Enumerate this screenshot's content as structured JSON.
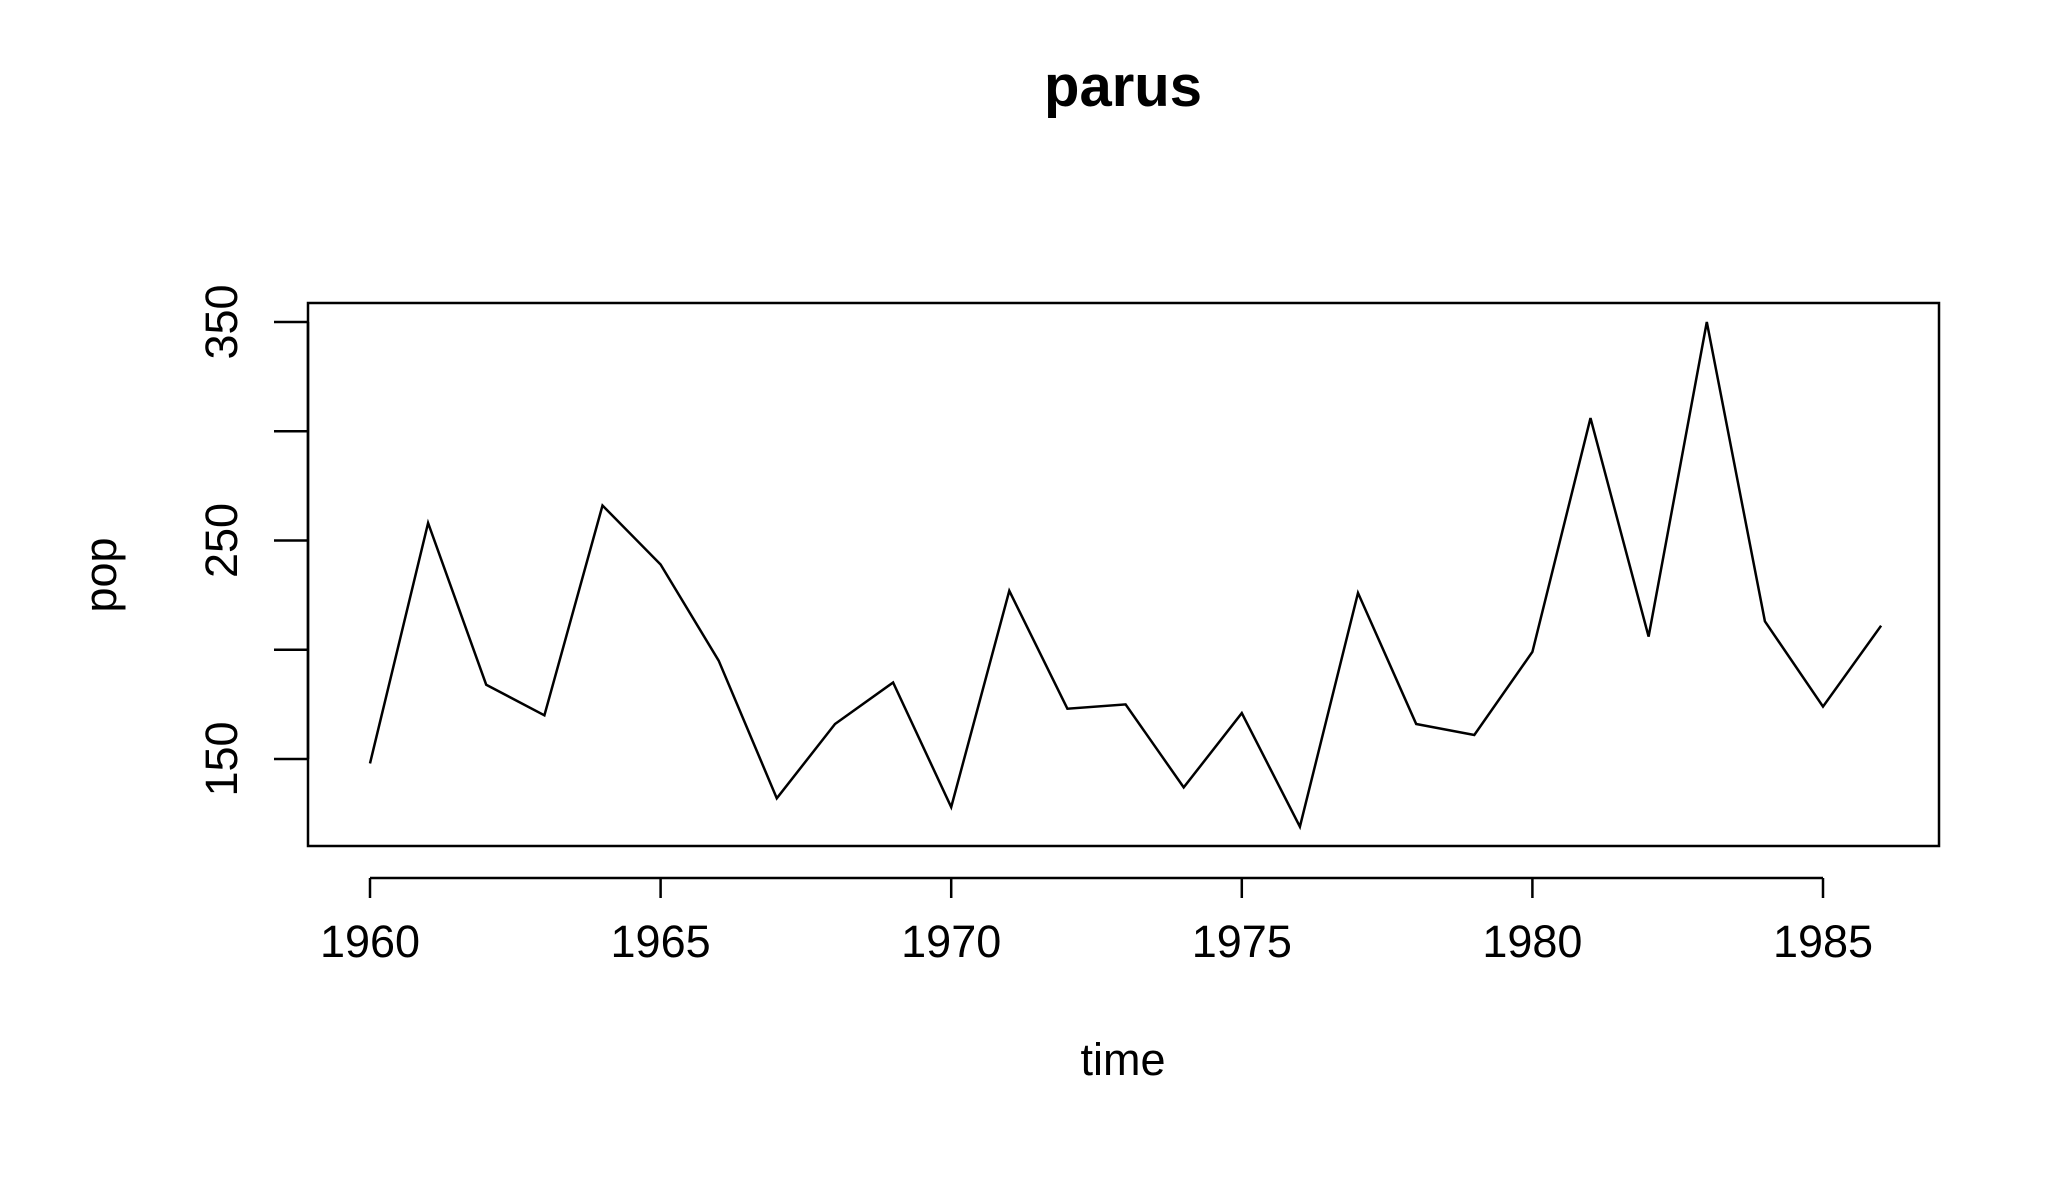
{
  "chart_data": {
    "type": "line",
    "title": "parus",
    "xlabel": "time",
    "ylabel": "pop",
    "xlim": [
      1959,
      1987
    ],
    "ylim": [
      110,
      360
    ],
    "xticks": [
      1960,
      1965,
      1970,
      1975,
      1980,
      1985
    ],
    "xtick_labels": [
      "1960",
      "1965",
      "1970",
      "1975",
      "1980",
      "1985"
    ],
    "yticks": [
      150,
      200,
      250,
      300,
      350
    ],
    "ytick_labels": [
      "150",
      "",
      "250",
      "",
      "350"
    ],
    "grid": false,
    "series": [
      {
        "color": "#000000",
        "x": [
          1960,
          1961,
          1962,
          1963,
          1964,
          1965,
          1966,
          1967,
          1968,
          1969,
          1970,
          1971,
          1972,
          1973,
          1974,
          1975,
          1976,
          1977,
          1978,
          1979,
          1980,
          1981,
          1982,
          1983,
          1984,
          1985,
          1986
        ],
        "y": [
          148,
          258,
          184,
          170,
          266,
          239,
          195,
          132,
          166,
          185,
          128,
          227,
          173,
          175,
          137,
          171,
          119,
          226,
          166,
          161,
          199,
          306,
          206,
          350,
          213,
          174,
          211
        ]
      }
    ]
  }
}
